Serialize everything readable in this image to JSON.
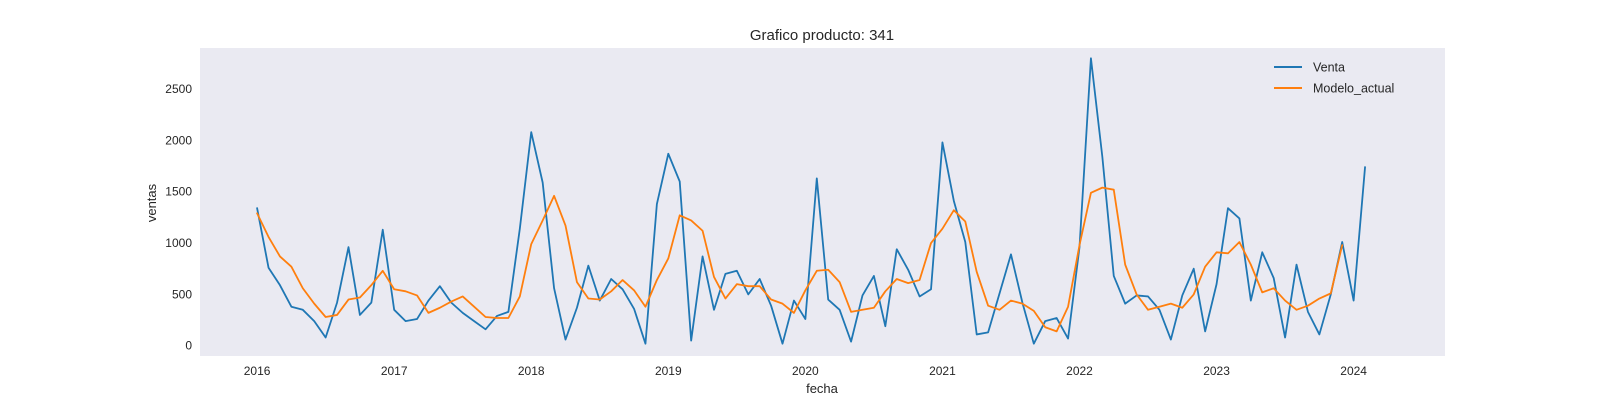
{
  "chart_data": {
    "type": "line",
    "title": "Grafico producto: 341",
    "xlabel": "fecha",
    "ylabel": "ventas",
    "x_start": "2016-01",
    "x_frequency": "monthly",
    "xlim": [
      "2015-08",
      "2024-09"
    ],
    "ylim": [
      -100,
      2900
    ],
    "x_ticks": [
      "2016",
      "2017",
      "2018",
      "2019",
      "2020",
      "2021",
      "2022",
      "2023",
      "2024"
    ],
    "y_ticks": [
      0,
      500,
      1000,
      1500,
      2000,
      2500
    ],
    "grid": false,
    "background": "#eaeaf2",
    "legend_position": "top-right",
    "series": [
      {
        "name": "Venta",
        "color": "#1f77b4",
        "values": [
          1340,
          760,
          590,
          380,
          350,
          240,
          80,
          420,
          960,
          300,
          420,
          1130,
          350,
          240,
          260,
          440,
          580,
          420,
          320,
          240,
          160,
          290,
          330,
          1140,
          2080,
          1590,
          560,
          60,
          370,
          780,
          440,
          650,
          550,
          360,
          20,
          1380,
          1870,
          1600,
          50,
          870,
          350,
          700,
          730,
          500,
          650,
          390,
          20,
          440,
          260,
          1630,
          450,
          350,
          40,
          490,
          680,
          190,
          940,
          740,
          480,
          550,
          1980,
          1410,
          1010,
          110,
          130,
          510,
          890,
          420,
          20,
          240,
          270,
          70,
          960,
          2800,
          1840,
          680,
          410,
          490,
          480,
          350,
          60,
          490,
          750,
          140,
          600,
          1340,
          1240,
          440,
          910,
          660,
          80,
          790,
          330,
          110,
          500,
          1010,
          440,
          1740
        ]
      },
      {
        "name": "Modelo_actual",
        "color": "#ff7f0e",
        "values": [
          1290,
          1060,
          870,
          770,
          560,
          410,
          280,
          300,
          450,
          470,
          590,
          730,
          550,
          530,
          490,
          320,
          370,
          430,
          480,
          380,
          280,
          270,
          270,
          480,
          990,
          1220,
          1460,
          1170,
          620,
          460,
          450,
          530,
          640,
          540,
          380,
          640,
          850,
          1270,
          1220,
          1120,
          670,
          460,
          600,
          580,
          580,
          450,
          410,
          320,
          540,
          730,
          740,
          620,
          330,
          350,
          370,
          530,
          650,
          610,
          640,
          1000,
          1140,
          1320,
          1210,
          720,
          390,
          350,
          440,
          410,
          340,
          180,
          140,
          380,
          980,
          1490,
          1540,
          1520,
          790,
          500,
          350,
          380,
          410,
          370,
          500,
          770,
          910,
          900,
          1010,
          790,
          520,
          560,
          440,
          350,
          390,
          460,
          510,
          980
        ]
      }
    ]
  }
}
